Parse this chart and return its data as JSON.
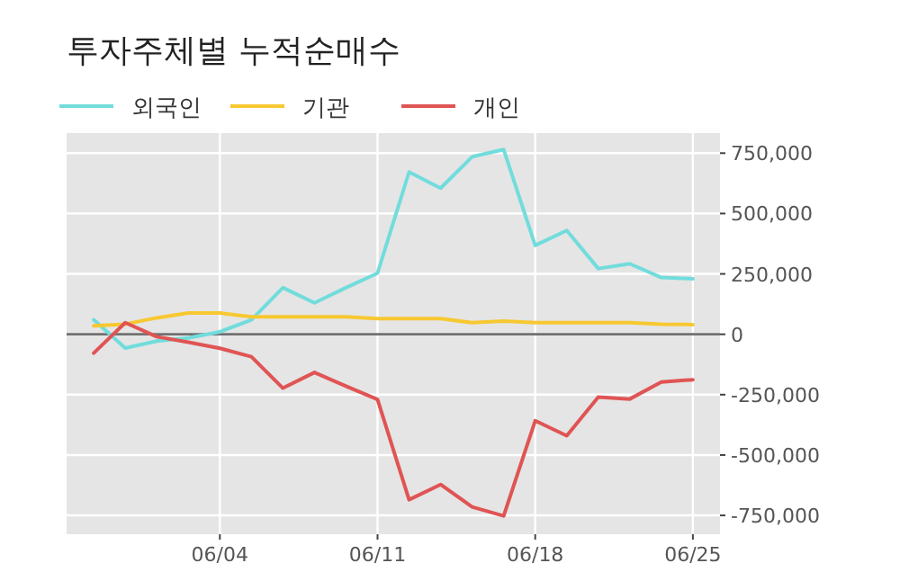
{
  "chart_data": {
    "type": "line",
    "title": "투자주체별 누적순매수",
    "categories": [
      null,
      null,
      null,
      null,
      "06/04",
      null,
      null,
      null,
      null,
      "06/11",
      null,
      null,
      null,
      null,
      "06/18",
      null,
      null,
      null,
      null,
      "06/25"
    ],
    "series": [
      {
        "name": "외국인",
        "color": "#72dcdc",
        "values": [
          60000,
          -57000,
          -28000,
          -15000,
          10000,
          60000,
          193000,
          130000,
          193000,
          253000,
          672000,
          605000,
          735000,
          765000,
          368000,
          430000,
          272000,
          292000,
          235000,
          230000
        ]
      },
      {
        "name": "기관",
        "color": "#f7c830",
        "values": [
          35000,
          42000,
          68000,
          88000,
          88000,
          72000,
          72000,
          72000,
          72000,
          65000,
          65000,
          65000,
          48000,
          55000,
          48000,
          48000,
          48000,
          48000,
          42000,
          40000
        ]
      },
      {
        "name": "개인",
        "color": "#e05454",
        "values": [
          -78000,
          48000,
          -10000,
          -33000,
          -58000,
          -93000,
          -223000,
          -158000,
          -215000,
          -270000,
          -685000,
          -622000,
          -715000,
          -752000,
          -358000,
          -420000,
          -260000,
          -268000,
          -198000,
          -188000
        ]
      }
    ],
    "ylim": [
      -828000,
      833000
    ],
    "yticks": [
      {
        "value": -750000,
        "label": "-750,000"
      },
      {
        "value": -500000,
        "label": "-500,000"
      },
      {
        "value": -250000,
        "label": "-250,000"
      },
      0,
      {
        "value": 250000,
        "label": "250,000"
      },
      {
        "value": 500000,
        "label": "500,000"
      },
      {
        "value": 750000,
        "label": "750,000"
      }
    ],
    "ref_lines": [
      {
        "axis": "y",
        "value": 0,
        "color": "#707070"
      }
    ],
    "grid": true,
    "legend": "top"
  }
}
